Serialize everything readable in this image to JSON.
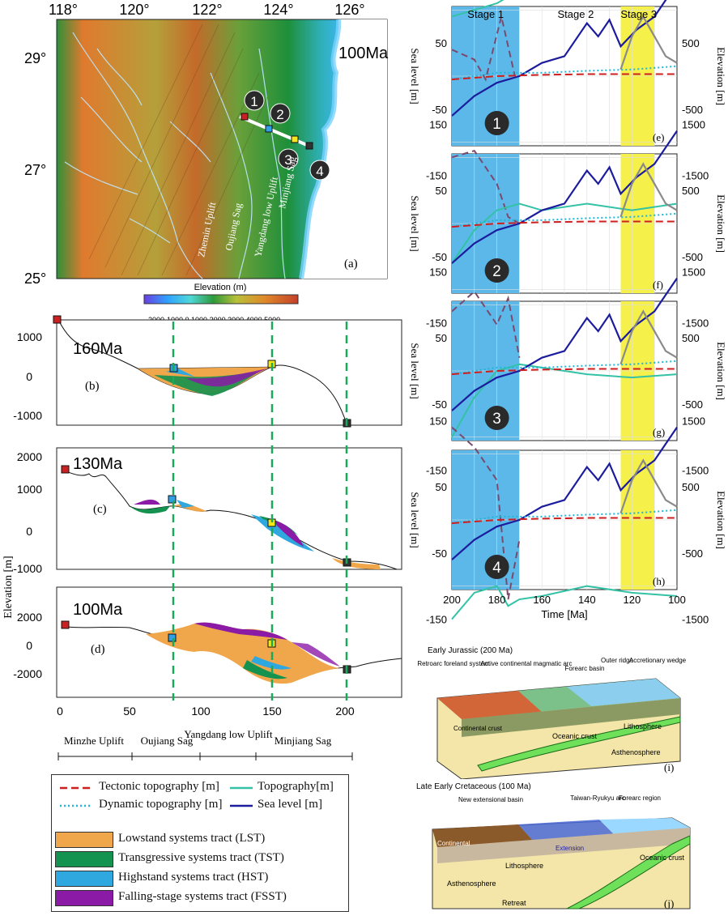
{
  "colors": {
    "lst": "#f0a64a",
    "tst": "#14924f",
    "hst": "#2fa8e0",
    "fsst": "#8b1aa6",
    "tectonic": "#cc1f1f",
    "dynamic": "#1fb7d9",
    "topography": "#33c2a6",
    "sea_level": "#1c1c9e",
    "stage1": "#5bb8e8",
    "stage3": "#f6f04a",
    "extra_curve": "#7a4a6e",
    "gray_curve": "#8a8a8a",
    "guide": "#1aa85a"
  },
  "panel_a": {
    "lon_ticks": [
      "118°",
      "120°",
      "122°",
      "124°",
      "126°"
    ],
    "lat_ticks": [
      "29°",
      "27°",
      "25°"
    ],
    "age": "100Ma",
    "letter": "(a)",
    "sites": [
      "1",
      "2",
      "3",
      "4"
    ],
    "place_labels": [
      "Zhemin Uplift",
      "Oujiang Sag",
      "Yangdang low Uplift",
      "Minjiang Sag"
    ],
    "colorbar_title": "Elevation (m)",
    "colorbar_ticks": "-2000-1000   0   1000 2000 3000 4000 5000"
  },
  "sections": {
    "ylabel": "Elevation [m]",
    "x_ticks": [
      "0",
      "50",
      "100",
      "150",
      "200"
    ],
    "b": {
      "age": "160Ma",
      "letter": "(b)",
      "y_ticks": [
        "1000",
        "0",
        "-1000"
      ]
    },
    "c": {
      "age": "130Ma",
      "letter": "(c)",
      "y_ticks": [
        "2000",
        "1000",
        "0",
        "-1000"
      ]
    },
    "d": {
      "age": "100Ma",
      "letter": "(d)",
      "y_ticks": [
        "2000",
        "0",
        "-2000"
      ]
    },
    "units": [
      "Minzhe Uplift",
      "Oujiang Sag",
      "Yangdang low Uplift",
      "Minjiang Sag"
    ]
  },
  "time_plots": {
    "stages": [
      "Stage 1",
      "Stage 2",
      "Stage 3"
    ],
    "left_label": "Sea level [m]",
    "right_label": "Elevation [m]",
    "left_ticks": [
      "150",
      "50",
      "-50",
      "-150"
    ],
    "right_ticks": [
      "1500",
      "500",
      "-500",
      "-1500"
    ],
    "x_ticks": [
      "200",
      "180",
      "160",
      "140",
      "120",
      "100"
    ],
    "xlabel": "Time [Ma]",
    "panels": [
      {
        "num": "1",
        "letter": "(e)"
      },
      {
        "num": "2",
        "letter": "(f)"
      },
      {
        "num": "3",
        "letter": "(g)"
      },
      {
        "num": "4",
        "letter": "(h)"
      }
    ]
  },
  "legend": {
    "lines": [
      {
        "label": "Tectonic topography [m]",
        "key": "tectonic"
      },
      {
        "label": "Topography[m]",
        "key": "topography"
      },
      {
        "label": "Dynamic topography [m]",
        "key": "dynamic"
      },
      {
        "label": "Sea level [m]",
        "key": "sea_level"
      }
    ],
    "tracts": [
      {
        "label": "Lowstand systems tract (LST)",
        "key": "lst"
      },
      {
        "label": "Transgressive systems tract (TST)",
        "key": "tst"
      },
      {
        "label": "Highstand systems tract (HST)",
        "key": "hst"
      },
      {
        "label": "Falling-stage systems tract (FSST)",
        "key": "fsst"
      }
    ]
  },
  "block_i": {
    "title": "Early Jurassic (200 Ma)",
    "labels": [
      "Retroarc foreland system",
      "Active continental magmatic arc",
      "Forearc basin",
      "Outer ridge",
      "Accretionary wedge"
    ],
    "crust": "Continental crust",
    "oceanic": "Oceanic crust",
    "litho": "Lithosphere",
    "astheno": "Asthenosphere",
    "letter": "(i)"
  },
  "block_j": {
    "title": "Late Early Cretaceous (100 Ma)",
    "labels": [
      "New extensional basin",
      "Taiwan-Ryukyu arc",
      "Forearc region"
    ],
    "crust": "Continental",
    "extension": "Extension",
    "litho": "Lithosphere",
    "oceanic": "Oceanic crust",
    "astheno": "Asthenosphere",
    "retreat": "Retreat",
    "letter": "(j)"
  }
}
